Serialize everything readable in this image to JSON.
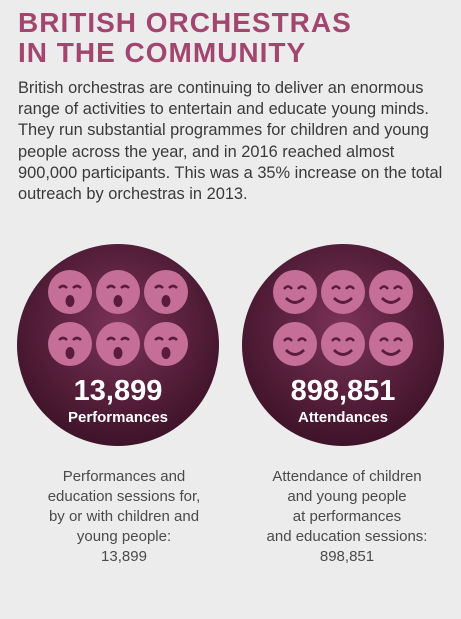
{
  "header": {
    "title_lines": [
      "BRITISH ORCHESTRAS",
      "IN THE COMMUNITY"
    ]
  },
  "intro": {
    "lines": [
      "British orchestras are continuing to deliver an enormous",
      "range of activities to entertain and educate young minds.",
      "They run substantial programmes for children and young",
      "people across the year, and in 2016 reached almost",
      "900,000 participants. This was a 35% increase on the total",
      "outreach by orchestras in 2013."
    ]
  },
  "stats": [
    {
      "number": "13,899",
      "label": "Performances",
      "caption_lines": [
        "Performances and",
        "education sessions for,",
        "by or with children and",
        "young people:",
        "13,899"
      ]
    },
    {
      "number": "898,851",
      "label": "Attendances",
      "caption_lines": [
        "Attendance of children",
        "and young people",
        "at performances",
        "and education sessions:",
        "898,851"
      ]
    }
  ]
}
